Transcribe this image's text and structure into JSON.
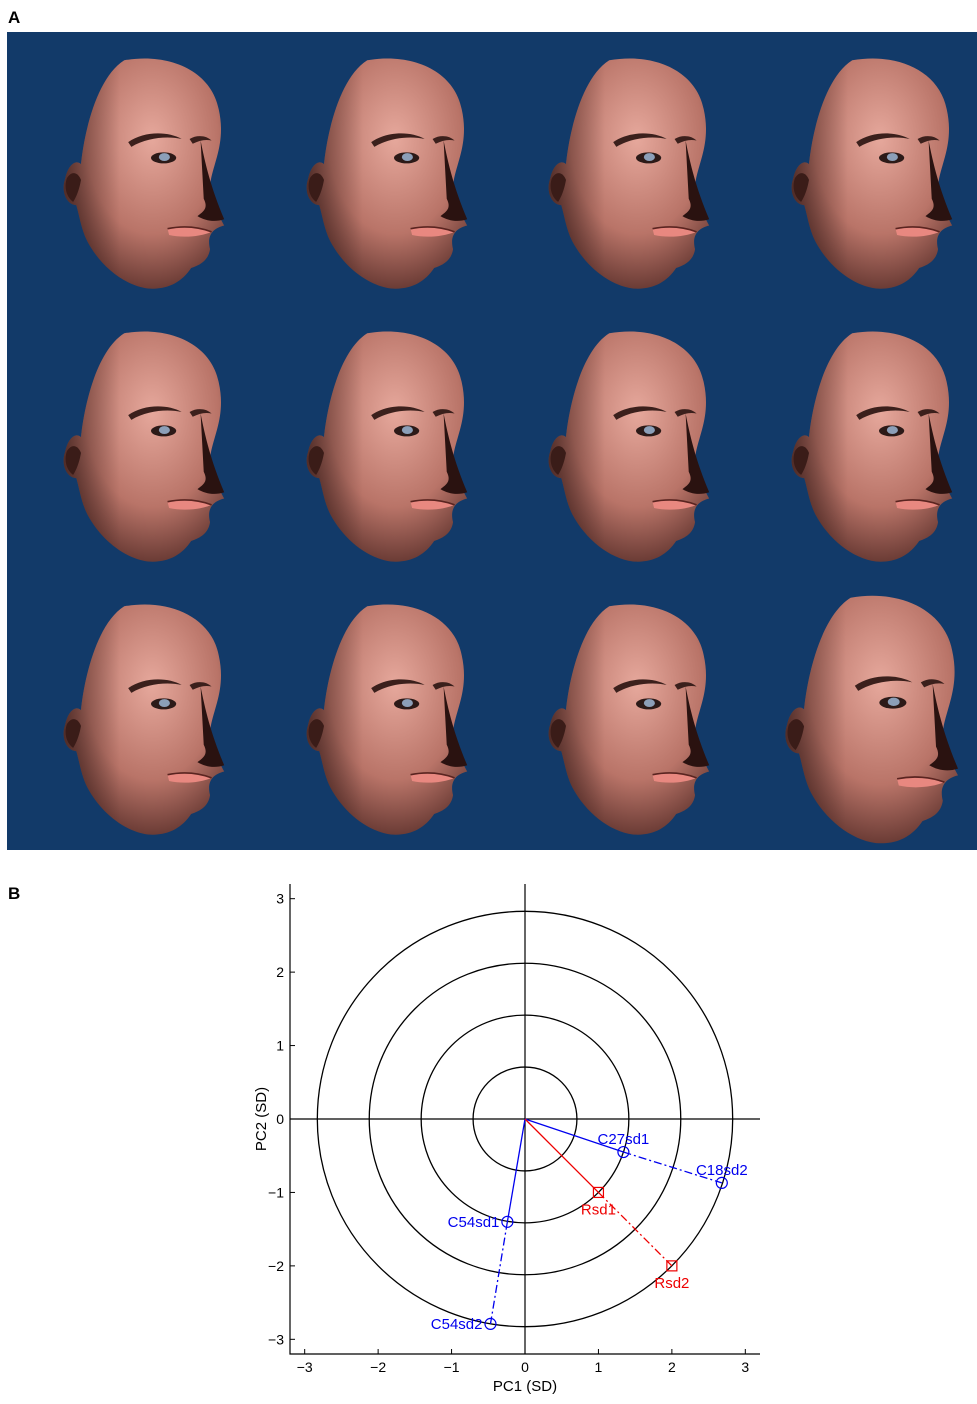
{
  "panel_a": {
    "label": "A",
    "background_color": "#123a69",
    "grid": {
      "rows": 3,
      "cols": 4
    },
    "faces": [
      {
        "row": 0,
        "col": 0,
        "variant": "standard"
      },
      {
        "row": 0,
        "col": 1,
        "variant": "standard"
      },
      {
        "row": 0,
        "col": 2,
        "variant": "standard"
      },
      {
        "row": 0,
        "col": 3,
        "variant": "standard"
      },
      {
        "row": 1,
        "col": 0,
        "variant": "standard"
      },
      {
        "row": 1,
        "col": 1,
        "variant": "standard"
      },
      {
        "row": 1,
        "col": 2,
        "variant": "standard"
      },
      {
        "row": 1,
        "col": 3,
        "variant": "wide"
      },
      {
        "row": 2,
        "col": 0,
        "variant": "standard"
      },
      {
        "row": 2,
        "col": 1,
        "variant": "standard"
      },
      {
        "row": 2,
        "col": 2,
        "variant": "standard"
      },
      {
        "row": 2,
        "col": 3,
        "variant": "large"
      }
    ]
  },
  "panel_b": {
    "label": "B"
  },
  "chart_data": {
    "type": "scatter",
    "xlabel": "PC1 (SD)",
    "ylabel": "PC2 (SD)",
    "xlim": [
      -3.2,
      3.2
    ],
    "ylim": [
      -3.2,
      3.2
    ],
    "xticks": [
      -3,
      -2,
      -1,
      0,
      1,
      2,
      3
    ],
    "yticks": [
      -3,
      -2,
      -1,
      0,
      1,
      2,
      3
    ],
    "grid": false,
    "circles": [
      0.707,
      1.414,
      2.121,
      2.828
    ],
    "points": [
      {
        "label": "C27sd1",
        "x": 1.34,
        "y": -0.45,
        "color": "#0000ee",
        "marker": "circle"
      },
      {
        "label": "C18sd2",
        "x": 2.68,
        "y": -0.87,
        "color": "#0000ee",
        "marker": "circle"
      },
      {
        "label": "C54sd1",
        "x": -0.24,
        "y": -1.4,
        "color": "#0000ee",
        "marker": "circle"
      },
      {
        "label": "C54sd2",
        "x": -0.47,
        "y": -2.79,
        "color": "#0000ee",
        "marker": "circle"
      },
      {
        "label": "Rsd1",
        "x": 1.0,
        "y": -1.0,
        "color": "#ee0000",
        "marker": "square"
      },
      {
        "label": "Rsd2",
        "x": 2.0,
        "y": -2.0,
        "color": "#ee0000",
        "marker": "square"
      }
    ],
    "lines": [
      {
        "from": [
          0,
          0
        ],
        "to": [
          1.34,
          -0.45
        ],
        "color": "#0000ee",
        "style": "solid"
      },
      {
        "from": [
          1.34,
          -0.45
        ],
        "to": [
          2.68,
          -0.87
        ],
        "color": "#0000ee",
        "style": "dashdot"
      },
      {
        "from": [
          0,
          0
        ],
        "to": [
          -0.24,
          -1.4
        ],
        "color": "#0000ee",
        "style": "solid"
      },
      {
        "from": [
          -0.24,
          -1.4
        ],
        "to": [
          -0.47,
          -2.79
        ],
        "color": "#0000ee",
        "style": "dashdot"
      },
      {
        "from": [
          0,
          0
        ],
        "to": [
          1.0,
          -1.0
        ],
        "color": "#ee0000",
        "style": "solid"
      },
      {
        "from": [
          1.0,
          -1.0
        ],
        "to": [
          2.0,
          -2.0
        ],
        "color": "#ee0000",
        "style": "dashdot"
      }
    ]
  }
}
